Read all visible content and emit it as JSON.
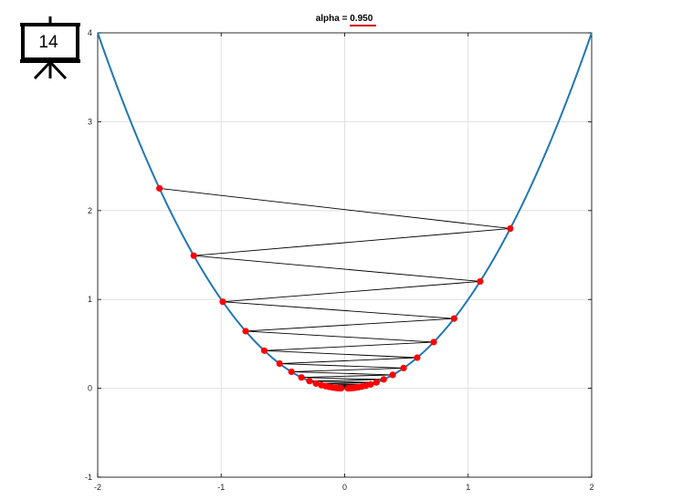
{
  "slide": {
    "number": "14"
  },
  "chart_data": {
    "type": "line",
    "title_prefix": "alpha = ",
    "title_value": "0.950",
    "xlabel": "",
    "ylabel": "",
    "xlim": [
      -2,
      2
    ],
    "ylim": [
      -1,
      4
    ],
    "xticks": [
      "-2",
      "-1",
      "0",
      "1",
      "2"
    ],
    "yticks": [
      "-1",
      "0",
      "1",
      "2",
      "3",
      "4"
    ],
    "grid": true,
    "curve": {
      "function": "y = x^2",
      "color": "#1f77b4"
    },
    "iterate_color": "#ff0000",
    "path_color": "#000000",
    "accent_underline_color": "#cc0000",
    "iterates": {
      "x": [
        -1.5,
        1.341,
        -1.222,
        1.097,
        -0.987,
        0.886,
        -0.802,
        0.721,
        -0.651,
        0.587,
        -0.527,
        0.477,
        -0.431,
        0.389,
        -0.35,
        0.316,
        -0.285,
        0.257,
        -0.232,
        0.21,
        -0.189,
        0.171,
        -0.154,
        0.139,
        -0.125,
        0.113,
        -0.102,
        0.092,
        -0.083,
        0.075,
        -0.067,
        0.061,
        -0.055,
        0.049,
        -0.044,
        0.04,
        -0.036,
        0.032,
        -0.029,
        0.026
      ],
      "y": [
        2.25,
        1.798,
        1.493,
        1.203,
        0.974,
        0.785,
        0.643,
        0.52,
        0.424,
        0.345,
        0.278,
        0.228,
        0.186,
        0.151,
        0.1225,
        0.1,
        0.081,
        0.066,
        0.054,
        0.044,
        0.036,
        0.029,
        0.024,
        0.019,
        0.0156,
        0.0128,
        0.0104,
        0.0085,
        0.0069,
        0.0056,
        0.0045,
        0.0037,
        0.003,
        0.0024,
        0.0019,
        0.0016,
        0.0013,
        0.001,
        0.0008,
        0.0007
      ]
    }
  }
}
